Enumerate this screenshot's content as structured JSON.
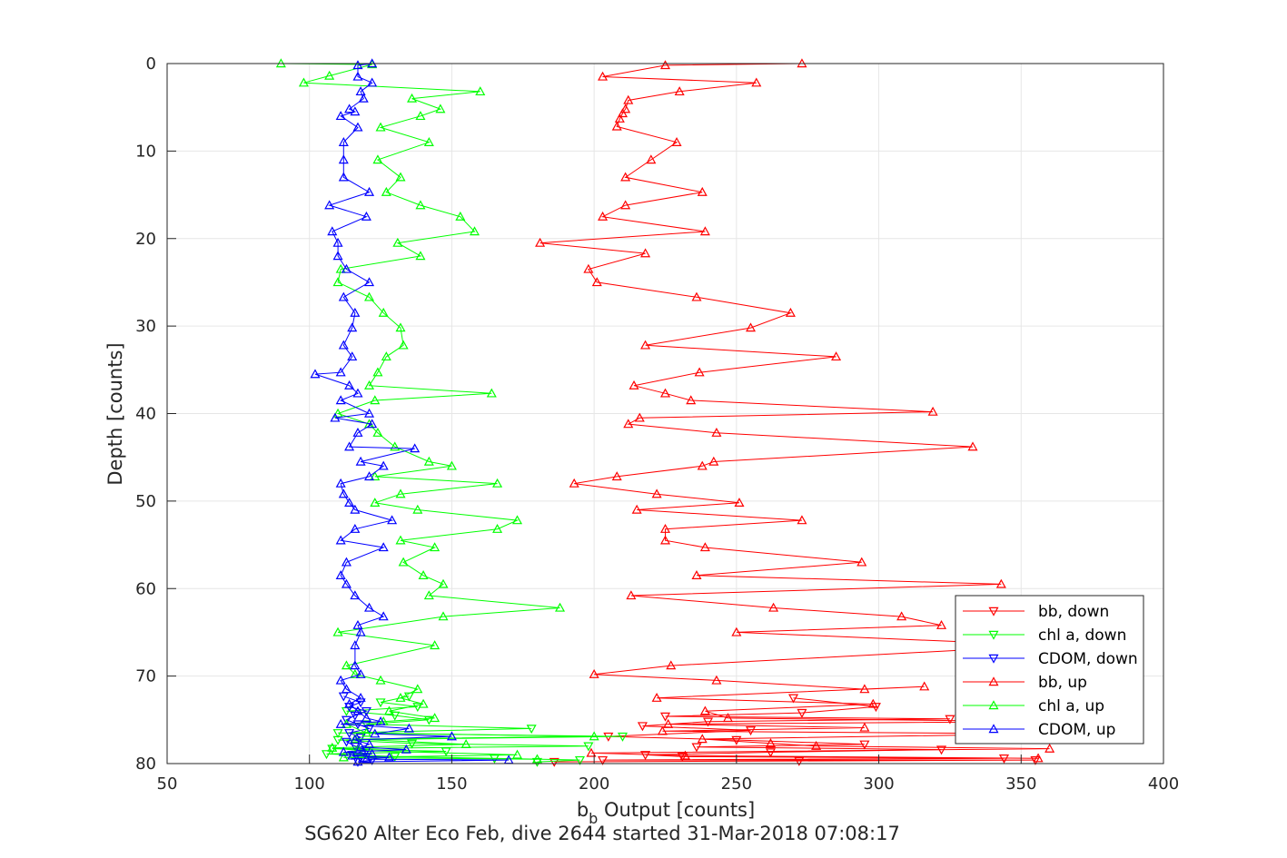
{
  "chart_data": {
    "type": "line",
    "xlabel_main": "b",
    "xlabel_sub": "b",
    "xlabel_rest": " Output [counts]",
    "ylabel": "Depth [counts]",
    "caption": "SG620 Alter Eco Feb, dive 2644 started 31-Mar-2018 07:08:17",
    "xlim": [
      50,
      400
    ],
    "ylim": [
      0,
      80
    ],
    "y_reversed": true,
    "grid": true,
    "legend_position": "bottom-right",
    "xticks": [
      "50",
      "100",
      "150",
      "200",
      "250",
      "300",
      "350",
      "400"
    ],
    "yticks": [
      "0",
      "10",
      "20",
      "30",
      "40",
      "50",
      "60",
      "70",
      "80"
    ],
    "series": [
      {
        "name": "bb, down",
        "color": "#ff0000",
        "marker": "down",
        "points": [
          [
            270,
            72.5
          ],
          [
            299,
            73.5
          ],
          [
            273,
            74.2
          ],
          [
            225,
            74.6
          ],
          [
            325,
            74.9
          ],
          [
            240,
            75.2
          ],
          [
            217,
            75.7
          ],
          [
            255,
            76.2
          ],
          [
            205,
            76.9
          ],
          [
            250,
            77.3
          ],
          [
            295,
            77.8
          ],
          [
            236,
            78.1
          ],
          [
            322,
            78.4
          ],
          [
            262,
            78.7
          ],
          [
            218,
            79
          ],
          [
            231,
            79.2
          ],
          [
            344,
            79.4
          ],
          [
            203,
            79.6
          ],
          [
            355,
            79.6
          ],
          [
            272,
            79.7
          ],
          [
            186,
            79.8
          ]
        ]
      },
      {
        "name": "chl a, down",
        "color": "#00ff00",
        "marker": "down",
        "points": [
          [
            135,
            72.3
          ],
          [
            125,
            73
          ],
          [
            138,
            73.5
          ],
          [
            113,
            74
          ],
          [
            130,
            74.5
          ],
          [
            142,
            75
          ],
          [
            120,
            75.5
          ],
          [
            178,
            76
          ],
          [
            110,
            76.5
          ],
          [
            210,
            76.9
          ],
          [
            110,
            77.3
          ],
          [
            136,
            77.7
          ],
          [
            198,
            78
          ],
          [
            108,
            78.3
          ],
          [
            148,
            78.6
          ],
          [
            106,
            78.9
          ],
          [
            130,
            79.2
          ],
          [
            165,
            79.4
          ],
          [
            195,
            79.6
          ],
          [
            180,
            79.8
          ]
        ]
      },
      {
        "name": "CDOM, down",
        "color": "#0000ff",
        "marker": "down",
        "points": [
          [
            112,
            72.3
          ],
          [
            118,
            73
          ],
          [
            114,
            73.5
          ],
          [
            120,
            74
          ],
          [
            116,
            74.5
          ],
          [
            113,
            75
          ],
          [
            117,
            75.5
          ],
          [
            121,
            76
          ],
          [
            114,
            76.5
          ],
          [
            118,
            77
          ],
          [
            113,
            77.5
          ],
          [
            116,
            78
          ],
          [
            120,
            78.5
          ],
          [
            115,
            79
          ],
          [
            118,
            79.3
          ],
          [
            122,
            79.6
          ],
          [
            117,
            79.8
          ]
        ]
      },
      {
        "name": "bb, up",
        "color": "#ff0000",
        "marker": "up",
        "points": [
          [
            273,
            0
          ],
          [
            225,
            0.2
          ],
          [
            203,
            1.5
          ],
          [
            257,
            2.2
          ],
          [
            230,
            3.2
          ],
          [
            212,
            4.2
          ],
          [
            211,
            5.2
          ],
          [
            210,
            5.7
          ],
          [
            209,
            6.3
          ],
          [
            208,
            7.2
          ],
          [
            229,
            9
          ],
          [
            220,
            11
          ],
          [
            211,
            13
          ],
          [
            238,
            14.7
          ],
          [
            211,
            16.2
          ],
          [
            203,
            17.5
          ],
          [
            239,
            19.2
          ],
          [
            181,
            20.5
          ],
          [
            218,
            21.7
          ],
          [
            198,
            23.5
          ],
          [
            201,
            25
          ],
          [
            236,
            26.7
          ],
          [
            269,
            28.5
          ],
          [
            255,
            30.2
          ],
          [
            218,
            32.2
          ],
          [
            285,
            33.5
          ],
          [
            237,
            35.3
          ],
          [
            214,
            36.8
          ],
          [
            225,
            37.7
          ],
          [
            234,
            38.5
          ],
          [
            319,
            39.8
          ],
          [
            216,
            40.5
          ],
          [
            212,
            41.2
          ],
          [
            243,
            42.2
          ],
          [
            333,
            43.8
          ],
          [
            242,
            45.5
          ],
          [
            238,
            46
          ],
          [
            208,
            47.2
          ],
          [
            193,
            48
          ],
          [
            222,
            49.2
          ],
          [
            251,
            50.2
          ],
          [
            215,
            51
          ],
          [
            273,
            52.2
          ],
          [
            225,
            53.2
          ],
          [
            225,
            54.5
          ],
          [
            239,
            55.3
          ],
          [
            294,
            57
          ],
          [
            236,
            58.5
          ],
          [
            343,
            59.5
          ],
          [
            213,
            60.8
          ],
          [
            263,
            62.2
          ],
          [
            308,
            63.2
          ],
          [
            322,
            64.2
          ],
          [
            250,
            65
          ],
          [
            360,
            66.5
          ],
          [
            227,
            68.8
          ],
          [
            200,
            69.8
          ],
          [
            243,
            70.5
          ],
          [
            295,
            71.5
          ],
          [
            316,
            71.2
          ],
          [
            222,
            72.5
          ],
          [
            298,
            73.2
          ],
          [
            239,
            74
          ],
          [
            247,
            74.8
          ],
          [
            360,
            75.2
          ],
          [
            226,
            75.5
          ],
          [
            295,
            75.9
          ],
          [
            224,
            76.3
          ],
          [
            360,
            76.6
          ],
          [
            238,
            77.2
          ],
          [
            262,
            77.7
          ],
          [
            278,
            78
          ],
          [
            360,
            78.3
          ],
          [
            199,
            78.8
          ],
          [
            232,
            79.1
          ],
          [
            356,
            79.4
          ]
        ]
      },
      {
        "name": "chl a, up",
        "color": "#00ff00",
        "marker": "up",
        "points": [
          [
            90,
            0
          ],
          [
            122,
            0.1
          ],
          [
            107,
            1.4
          ],
          [
            98,
            2.2
          ],
          [
            160,
            3.2
          ],
          [
            136,
            4
          ],
          [
            146,
            5.2
          ],
          [
            139,
            6
          ],
          [
            125,
            7.3
          ],
          [
            142,
            9
          ],
          [
            124,
            11
          ],
          [
            132,
            13
          ],
          [
            127,
            14.7
          ],
          [
            139,
            16.2
          ],
          [
            153,
            17.5
          ],
          [
            158,
            19.2
          ],
          [
            131,
            20.5
          ],
          [
            139,
            22
          ],
          [
            111,
            23.5
          ],
          [
            110,
            25
          ],
          [
            121,
            26.7
          ],
          [
            126,
            28.5
          ],
          [
            132,
            30.2
          ],
          [
            133,
            32.2
          ],
          [
            127,
            33.5
          ],
          [
            124,
            35.3
          ],
          [
            121,
            36.8
          ],
          [
            164,
            37.7
          ],
          [
            123,
            38.5
          ],
          [
            110,
            40
          ],
          [
            121,
            41.2
          ],
          [
            124,
            42.2
          ],
          [
            130,
            43.8
          ],
          [
            142,
            45.5
          ],
          [
            150,
            46
          ],
          [
            123,
            47.2
          ],
          [
            166,
            48
          ],
          [
            132,
            49.2
          ],
          [
            123,
            50.2
          ],
          [
            138,
            51
          ],
          [
            173,
            52.2
          ],
          [
            166,
            53.2
          ],
          [
            132,
            54.5
          ],
          [
            144,
            55.3
          ],
          [
            133,
            57
          ],
          [
            140,
            58.5
          ],
          [
            147,
            59.5
          ],
          [
            142,
            60.8
          ],
          [
            188,
            62.2
          ],
          [
            147,
            63.2
          ],
          [
            110,
            65
          ],
          [
            144,
            66.5
          ],
          [
            113,
            68.8
          ],
          [
            116,
            69.8
          ],
          [
            125,
            70.5
          ],
          [
            138,
            71.5
          ],
          [
            132,
            72.5
          ],
          [
            140,
            73.2
          ],
          [
            128,
            74
          ],
          [
            144,
            74.8
          ],
          [
            126,
            75.2
          ],
          [
            113,
            75.5
          ],
          [
            120,
            76.5
          ],
          [
            200,
            76.9
          ],
          [
            116,
            77.2
          ],
          [
            155,
            77.8
          ],
          [
            108,
            78.2
          ],
          [
            117,
            78.5
          ],
          [
            173,
            79
          ],
          [
            112,
            79.3
          ],
          [
            180,
            79.5
          ]
        ]
      },
      {
        "name": "CDOM, up",
        "color": "#0000ff",
        "marker": "up",
        "points": [
          [
            122,
            0
          ],
          [
            117,
            0.2
          ],
          [
            117,
            1.5
          ],
          [
            122,
            2.2
          ],
          [
            118,
            3.2
          ],
          [
            119,
            4
          ],
          [
            114,
            5.2
          ],
          [
            116,
            5.5
          ],
          [
            111,
            6
          ],
          [
            117,
            7.3
          ],
          [
            112,
            9
          ],
          [
            112,
            11
          ],
          [
            112,
            13
          ],
          [
            121,
            14.7
          ],
          [
            107,
            16.2
          ],
          [
            120,
            17.5
          ],
          [
            108,
            19.2
          ],
          [
            110,
            20.5
          ],
          [
            110,
            22
          ],
          [
            113,
            23.5
          ],
          [
            121,
            25
          ],
          [
            112,
            26.7
          ],
          [
            116,
            28.5
          ],
          [
            115,
            30.2
          ],
          [
            112,
            32.2
          ],
          [
            115,
            33.5
          ],
          [
            111,
            35.3
          ],
          [
            102,
            35.5
          ],
          [
            114,
            36.8
          ],
          [
            117,
            37.7
          ],
          [
            111,
            38.5
          ],
          [
            121,
            40
          ],
          [
            109,
            40.5
          ],
          [
            122,
            41.2
          ],
          [
            117,
            42.2
          ],
          [
            114,
            43.8
          ],
          [
            137,
            44
          ],
          [
            118,
            45.5
          ],
          [
            126,
            46
          ],
          [
            121,
            47.2
          ],
          [
            111,
            48
          ],
          [
            112,
            49.2
          ],
          [
            114,
            50.2
          ],
          [
            116,
            51
          ],
          [
            129,
            52.2
          ],
          [
            116,
            53.2
          ],
          [
            111,
            54.5
          ],
          [
            126,
            55.3
          ],
          [
            113,
            57
          ],
          [
            111,
            58.5
          ],
          [
            113,
            59.5
          ],
          [
            116,
            60.8
          ],
          [
            121,
            62.2
          ],
          [
            126,
            63.2
          ],
          [
            117,
            64.2
          ],
          [
            118,
            65
          ],
          [
            116,
            66.5
          ],
          [
            116,
            68.8
          ],
          [
            118,
            69.8
          ],
          [
            111,
            70.5
          ],
          [
            113,
            71.5
          ],
          [
            118,
            72.5
          ],
          [
            114,
            73.2
          ],
          [
            117,
            74
          ],
          [
            120,
            74.8
          ],
          [
            125,
            75.2
          ],
          [
            111,
            75.5
          ],
          [
            135,
            76
          ],
          [
            123,
            76.6
          ],
          [
            150,
            76.9
          ],
          [
            116,
            77.3
          ],
          [
            121,
            77.8
          ],
          [
            118,
            78.1
          ],
          [
            134,
            78.4
          ],
          [
            112,
            78.7
          ],
          [
            122,
            78.9
          ],
          [
            115,
            79.1
          ],
          [
            128,
            79.3
          ],
          [
            120,
            79.5
          ],
          [
            170,
            79.6
          ],
          [
            117,
            79.8
          ]
        ]
      }
    ]
  }
}
